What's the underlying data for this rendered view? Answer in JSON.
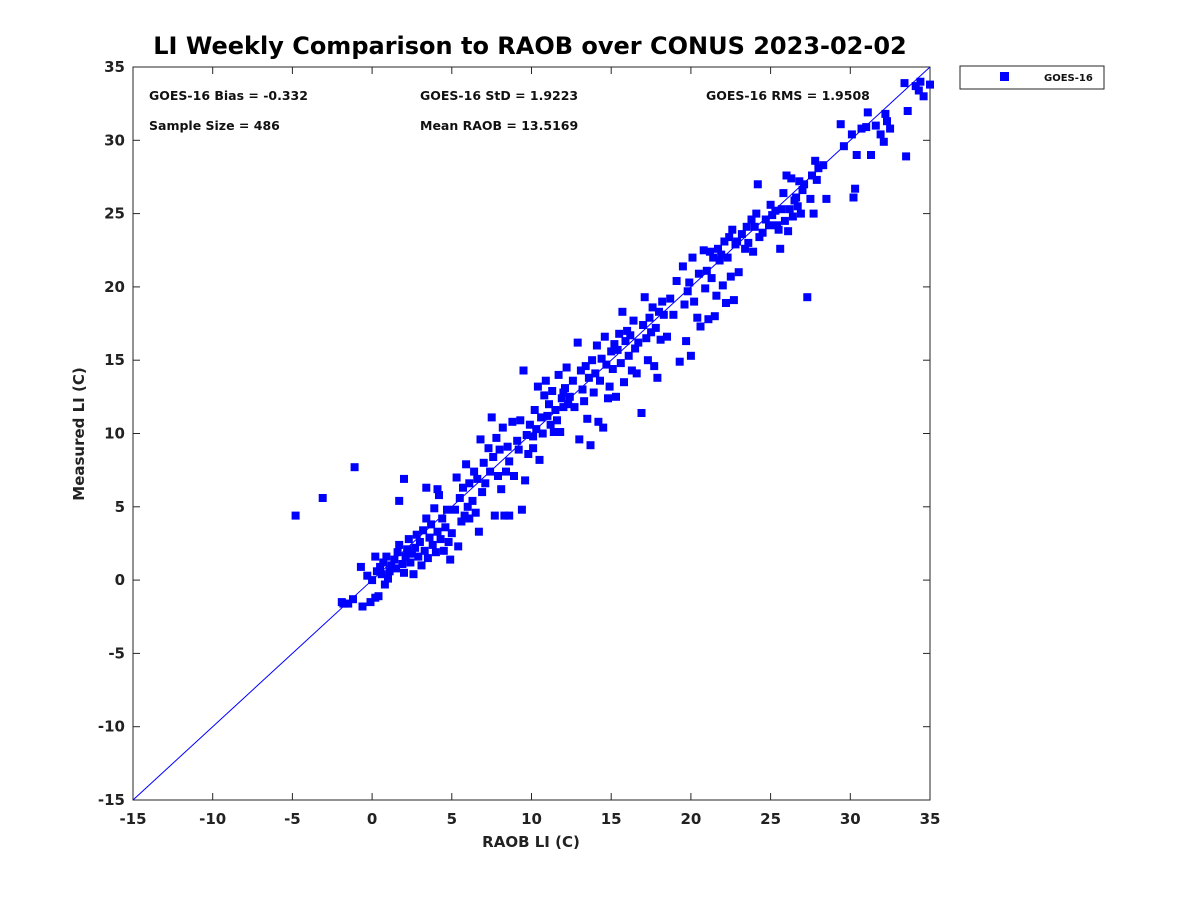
{
  "chart_data": {
    "type": "scatter",
    "title": "LI Weekly Comparison to RAOB over CONUS 2023-02-02",
    "xlabel": "RAOB LI (C)",
    "ylabel": "Measured LI (C)",
    "xlim": [
      -15,
      35
    ],
    "ylim": [
      -15,
      35
    ],
    "xticks": [
      -15,
      -10,
      -5,
      0,
      5,
      10,
      15,
      20,
      25,
      30,
      35
    ],
    "yticks": [
      -15,
      -10,
      -5,
      0,
      5,
      10,
      15,
      20,
      25,
      30,
      35
    ],
    "grid": false,
    "legend_position": "outside-top-right",
    "reference_line": {
      "label": "1:1",
      "from": [
        -15,
        -15
      ],
      "to": [
        35,
        35
      ],
      "color": "#0000ff"
    },
    "stats": {
      "bias": "GOES-16 Bias = -0.332",
      "std": "GOES-16 StD = 1.9223",
      "rms": "GOES-16 RMS = 1.9508",
      "sample_size": "Sample Size = 486",
      "mean_raob": "Mean RAOB = 13.5169"
    },
    "series": [
      {
        "name": "GOES-16",
        "color": "#0000ff",
        "marker": "square",
        "points": [
          [
            -4.8,
            4.4
          ],
          [
            -3.1,
            5.6
          ],
          [
            -1.1,
            7.7
          ],
          [
            -1.8,
            -1.6
          ],
          [
            -1.5,
            -1.6
          ],
          [
            -1.9,
            -1.5
          ],
          [
            -1.2,
            -1.3
          ],
          [
            -0.6,
            -1.8
          ],
          [
            -0.1,
            -1.5
          ],
          [
            0.2,
            -1.2
          ],
          [
            0.4,
            -1.1
          ],
          [
            -0.7,
            0.9
          ],
          [
            -0.3,
            0.3
          ],
          [
            0.0,
            0.0
          ],
          [
            0.3,
            0.6
          ],
          [
            0.5,
            0.9
          ],
          [
            0.7,
            1.2
          ],
          [
            0.9,
            1.6
          ],
          [
            0.2,
            1.6
          ],
          [
            0.6,
            0.4
          ],
          [
            0.8,
            -0.3
          ],
          [
            1.0,
            0.1
          ],
          [
            1.1,
            0.6
          ],
          [
            1.2,
            1.0
          ],
          [
            1.4,
            1.4
          ],
          [
            1.5,
            0.8
          ],
          [
            1.6,
            1.9
          ],
          [
            1.7,
            2.4
          ],
          [
            1.9,
            1.1
          ],
          [
            2.0,
            0.5
          ],
          [
            2.1,
            1.6
          ],
          [
            2.2,
            2.1
          ],
          [
            2.3,
            2.8
          ],
          [
            2.4,
            1.2
          ],
          [
            2.5,
            1.8
          ],
          [
            2.6,
            0.4
          ],
          [
            2.7,
            2.2
          ],
          [
            2.8,
            3.1
          ],
          [
            2.9,
            1.6
          ],
          [
            3.0,
            2.6
          ],
          [
            3.1,
            1.0
          ],
          [
            3.2,
            3.4
          ],
          [
            3.3,
            2.0
          ],
          [
            3.4,
            4.2
          ],
          [
            3.5,
            1.5
          ],
          [
            3.6,
            2.9
          ],
          [
            3.7,
            3.8
          ],
          [
            3.8,
            2.4
          ],
          [
            3.9,
            4.9
          ],
          [
            4.0,
            1.9
          ],
          [
            4.1,
            3.3
          ],
          [
            4.2,
            5.8
          ],
          [
            4.3,
            2.8
          ],
          [
            4.4,
            4.2
          ],
          [
            4.5,
            2.0
          ],
          [
            4.6,
            3.6
          ],
          [
            4.7,
            4.8
          ],
          [
            4.8,
            2.6
          ],
          [
            4.9,
            1.4
          ],
          [
            5.0,
            3.2
          ],
          [
            5.2,
            4.8
          ],
          [
            5.3,
            7.0
          ],
          [
            5.4,
            2.3
          ],
          [
            5.5,
            5.6
          ],
          [
            5.6,
            4.0
          ],
          [
            5.7,
            6.3
          ],
          [
            5.8,
            4.4
          ],
          [
            5.9,
            7.9
          ],
          [
            6.0,
            5.0
          ],
          [
            6.1,
            6.6
          ],
          [
            6.3,
            5.4
          ],
          [
            6.4,
            7.4
          ],
          [
            6.5,
            4.6
          ],
          [
            6.6,
            6.9
          ],
          [
            6.7,
            3.3
          ],
          [
            6.8,
            9.6
          ],
          [
            6.9,
            6.0
          ],
          [
            7.0,
            8.0
          ],
          [
            7.1,
            6.6
          ],
          [
            7.3,
            9.0
          ],
          [
            7.4,
            7.4
          ],
          [
            7.5,
            11.1
          ],
          [
            7.6,
            8.4
          ],
          [
            7.7,
            4.4
          ],
          [
            7.8,
            9.7
          ],
          [
            7.9,
            7.1
          ],
          [
            8.0,
            8.9
          ],
          [
            8.1,
            6.2
          ],
          [
            8.2,
            10.4
          ],
          [
            8.3,
            4.4
          ],
          [
            8.4,
            7.4
          ],
          [
            8.5,
            9.1
          ],
          [
            8.6,
            8.1
          ],
          [
            8.8,
            10.8
          ],
          [
            8.9,
            7.1
          ],
          [
            9.1,
            9.5
          ],
          [
            9.2,
            8.9
          ],
          [
            9.3,
            10.9
          ],
          [
            9.4,
            4.8
          ],
          [
            9.5,
            14.3
          ],
          [
            9.6,
            6.8
          ],
          [
            9.7,
            9.9
          ],
          [
            9.8,
            8.6
          ],
          [
            9.9,
            10.6
          ],
          [
            10.1,
            9.8
          ],
          [
            10.2,
            11.6
          ],
          [
            10.3,
            10.3
          ],
          [
            10.4,
            13.2
          ],
          [
            10.5,
            8.2
          ],
          [
            10.6,
            11.1
          ],
          [
            10.7,
            10.0
          ],
          [
            10.8,
            12.6
          ],
          [
            10.9,
            13.6
          ],
          [
            11.0,
            11.2
          ],
          [
            11.1,
            12.0
          ],
          [
            11.2,
            10.6
          ],
          [
            11.3,
            12.9
          ],
          [
            11.5,
            11.6
          ],
          [
            11.6,
            10.9
          ],
          [
            11.7,
            14.0
          ],
          [
            11.8,
            10.1
          ],
          [
            11.9,
            12.4
          ],
          [
            12.0,
            11.8
          ],
          [
            12.1,
            13.1
          ],
          [
            12.2,
            14.5
          ],
          [
            12.3,
            12.0
          ],
          [
            12.4,
            12.5
          ],
          [
            12.6,
            13.6
          ],
          [
            12.7,
            11.8
          ],
          [
            12.9,
            16.2
          ],
          [
            13.0,
            9.6
          ],
          [
            13.1,
            14.3
          ],
          [
            13.2,
            13.0
          ],
          [
            13.3,
            12.2
          ],
          [
            13.4,
            14.6
          ],
          [
            13.5,
            11.0
          ],
          [
            13.6,
            13.8
          ],
          [
            13.7,
            9.2
          ],
          [
            13.8,
            15.0
          ],
          [
            13.9,
            12.8
          ],
          [
            14.0,
            14.1
          ],
          [
            14.1,
            16.0
          ],
          [
            14.2,
            10.8
          ],
          [
            14.3,
            13.6
          ],
          [
            14.4,
            15.1
          ],
          [
            14.5,
            10.4
          ],
          [
            14.6,
            16.6
          ],
          [
            14.7,
            14.7
          ],
          [
            14.8,
            12.4
          ],
          [
            14.9,
            13.2
          ],
          [
            15.0,
            15.6
          ],
          [
            15.1,
            14.4
          ],
          [
            15.2,
            16.1
          ],
          [
            15.3,
            12.5
          ],
          [
            15.4,
            15.7
          ],
          [
            15.5,
            16.8
          ],
          [
            15.6,
            14.8
          ],
          [
            15.7,
            18.3
          ],
          [
            15.8,
            13.5
          ],
          [
            15.9,
            16.3
          ],
          [
            16.0,
            17.0
          ],
          [
            16.1,
            15.3
          ],
          [
            16.2,
            16.7
          ],
          [
            16.3,
            14.3
          ],
          [
            16.4,
            17.7
          ],
          [
            16.5,
            15.8
          ],
          [
            16.6,
            14.1
          ],
          [
            16.7,
            16.2
          ],
          [
            16.9,
            11.4
          ],
          [
            17.0,
            17.4
          ],
          [
            17.1,
            19.3
          ],
          [
            17.2,
            16.5
          ],
          [
            17.3,
            15.0
          ],
          [
            17.4,
            17.9
          ],
          [
            17.5,
            16.9
          ],
          [
            17.6,
            18.6
          ],
          [
            17.7,
            14.6
          ],
          [
            17.8,
            17.2
          ],
          [
            17.9,
            13.8
          ],
          [
            18.0,
            18.3
          ],
          [
            18.1,
            16.4
          ],
          [
            18.2,
            19.0
          ],
          [
            18.3,
            18.1
          ],
          [
            18.5,
            16.6
          ],
          [
            18.7,
            19.2
          ],
          [
            18.9,
            18.1
          ],
          [
            19.1,
            20.4
          ],
          [
            19.3,
            14.9
          ],
          [
            19.5,
            21.4
          ],
          [
            19.6,
            18.8
          ],
          [
            19.7,
            16.3
          ],
          [
            19.8,
            19.7
          ],
          [
            19.9,
            20.3
          ],
          [
            20.0,
            15.3
          ],
          [
            20.1,
            22.0
          ],
          [
            20.2,
            19.0
          ],
          [
            20.4,
            17.9
          ],
          [
            20.5,
            20.9
          ],
          [
            20.6,
            17.3
          ],
          [
            20.8,
            22.5
          ],
          [
            20.9,
            19.9
          ],
          [
            21.0,
            21.1
          ],
          [
            21.1,
            17.8
          ],
          [
            21.2,
            22.4
          ],
          [
            21.3,
            20.6
          ],
          [
            21.4,
            22.0
          ],
          [
            21.5,
            18.0
          ],
          [
            21.6,
            19.4
          ],
          [
            21.7,
            22.6
          ],
          [
            21.8,
            21.8
          ],
          [
            21.9,
            22.2
          ],
          [
            22.0,
            20.1
          ],
          [
            22.1,
            23.1
          ],
          [
            22.2,
            18.9
          ],
          [
            22.3,
            22.0
          ],
          [
            22.4,
            23.4
          ],
          [
            22.5,
            20.7
          ],
          [
            22.6,
            23.9
          ],
          [
            22.7,
            19.1
          ],
          [
            22.8,
            22.9
          ],
          [
            22.9,
            23.1
          ],
          [
            23.0,
            21.0
          ],
          [
            23.2,
            23.6
          ],
          [
            23.4,
            22.6
          ],
          [
            23.5,
            24.1
          ],
          [
            23.6,
            23.0
          ],
          [
            23.8,
            24.6
          ],
          [
            23.9,
            22.4
          ],
          [
            24.0,
            24.1
          ],
          [
            24.1,
            25.0
          ],
          [
            24.2,
            27.0
          ],
          [
            24.3,
            23.4
          ],
          [
            24.5,
            23.7
          ],
          [
            24.7,
            24.6
          ],
          [
            24.9,
            24.2
          ],
          [
            25.0,
            25.6
          ],
          [
            25.1,
            24.9
          ],
          [
            25.3,
            25.2
          ],
          [
            25.4,
            24.2
          ],
          [
            25.5,
            23.9
          ],
          [
            25.6,
            22.6
          ],
          [
            25.7,
            25.3
          ],
          [
            25.8,
            26.4
          ],
          [
            25.9,
            24.5
          ],
          [
            26.0,
            27.6
          ],
          [
            26.1,
            23.8
          ],
          [
            26.2,
            25.3
          ],
          [
            26.3,
            27.4
          ],
          [
            26.4,
            24.8
          ],
          [
            26.5,
            25.9
          ],
          [
            26.6,
            26.1
          ],
          [
            26.7,
            25.5
          ],
          [
            26.8,
            27.2
          ],
          [
            26.9,
            25.0
          ],
          [
            27.0,
            26.6
          ],
          [
            27.1,
            27.0
          ],
          [
            27.3,
            19.3
          ],
          [
            27.5,
            26.0
          ],
          [
            27.6,
            27.6
          ],
          [
            27.7,
            25.0
          ],
          [
            27.8,
            28.6
          ],
          [
            27.9,
            27.3
          ],
          [
            28.0,
            28.1
          ],
          [
            28.3,
            28.3
          ],
          [
            28.5,
            26.0
          ],
          [
            29.4,
            31.1
          ],
          [
            29.6,
            29.6
          ],
          [
            30.1,
            30.4
          ],
          [
            30.2,
            26.1
          ],
          [
            30.3,
            26.7
          ],
          [
            30.4,
            29.0
          ],
          [
            30.7,
            30.8
          ],
          [
            31.0,
            30.9
          ],
          [
            31.1,
            31.9
          ],
          [
            31.3,
            29.0
          ],
          [
            31.6,
            31.0
          ],
          [
            31.9,
            30.4
          ],
          [
            32.1,
            29.9
          ],
          [
            32.2,
            31.8
          ],
          [
            32.3,
            31.3
          ],
          [
            32.5,
            30.8
          ],
          [
            33.4,
            33.9
          ],
          [
            33.5,
            28.9
          ],
          [
            33.6,
            32.0
          ],
          [
            34.1,
            33.7
          ],
          [
            34.3,
            33.4
          ],
          [
            34.4,
            34.0
          ],
          [
            34.6,
            33.0
          ],
          [
            35.0,
            33.8
          ],
          [
            4.1,
            6.2
          ],
          [
            2.0,
            6.9
          ],
          [
            1.7,
            5.4
          ],
          [
            3.4,
            6.3
          ],
          [
            6.1,
            4.2
          ],
          [
            8.6,
            4.4
          ],
          [
            10.1,
            9.0
          ],
          [
            11.4,
            10.1
          ],
          [
            12.0,
            12.8
          ]
        ]
      }
    ]
  }
}
